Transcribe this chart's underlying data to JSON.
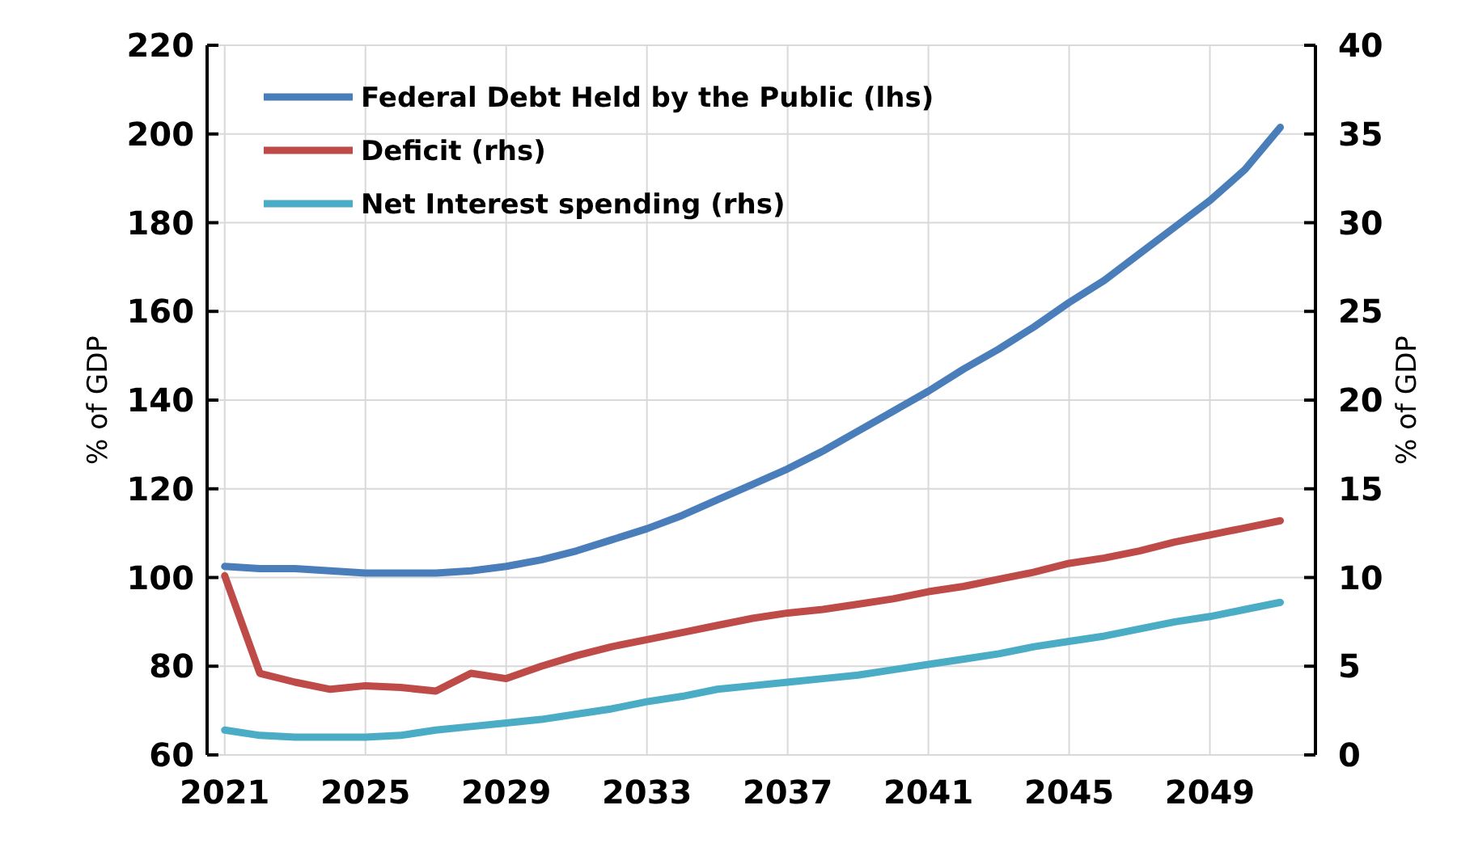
{
  "chart_data": {
    "type": "line",
    "ylabel": "% of GDP",
    "y2label": "% of GDP",
    "x": [
      2021,
      2022,
      2023,
      2024,
      2025,
      2026,
      2027,
      2028,
      2029,
      2030,
      2031,
      2032,
      2033,
      2034,
      2035,
      2036,
      2037,
      2038,
      2039,
      2040,
      2041,
      2042,
      2043,
      2044,
      2045,
      2046,
      2047,
      2048,
      2049,
      2050,
      2051
    ],
    "xlim": [
      2020.5,
      2052
    ],
    "xticks": [
      2021,
      2025,
      2029,
      2033,
      2037,
      2041,
      2045,
      2049
    ],
    "ylim": [
      60,
      220
    ],
    "yticks": [
      60,
      80,
      100,
      120,
      140,
      160,
      180,
      200,
      220
    ],
    "y2lim": [
      0,
      40
    ],
    "y2ticks": [
      0,
      5,
      10,
      15,
      20,
      25,
      30,
      35,
      40
    ],
    "grid": true,
    "legend": "top left",
    "line_style": "solid",
    "marker": "none",
    "series": [
      {
        "name": "Federal Debt Held by the Public (lhs)",
        "color": "#4a7ebb",
        "values": [
          102.5,
          102,
          102,
          101.5,
          101,
          101,
          101,
          101.5,
          102.5,
          104,
          106,
          108.5,
          111,
          114,
          117.5,
          121,
          124.5,
          128.5,
          133,
          137.5,
          142,
          147,
          151.5,
          156.5,
          162,
          167,
          173,
          179,
          185,
          192,
          201.5
        ]
      },
      {
        "name": "Deficit (rhs)",
        "color": "#be4b48",
        "axis": "y2",
        "values": [
          10.1,
          4.6,
          4.1,
          3.7,
          3.9,
          3.8,
          3.6,
          4.6,
          4.3,
          5.0,
          5.6,
          6.1,
          6.5,
          6.9,
          7.3,
          7.7,
          8.0,
          8.2,
          8.5,
          8.8,
          9.2,
          9.5,
          9.9,
          10.3,
          10.8,
          11.1,
          11.5,
          12.0,
          12.4,
          12.8,
          13.2
        ]
      },
      {
        "name": "Net Interest spending (rhs)",
        "color": "#4bacc6",
        "axis": "y2",
        "values": [
          1.4,
          1.1,
          1.0,
          1.0,
          1.0,
          1.1,
          1.4,
          1.6,
          1.8,
          2.0,
          2.3,
          2.6,
          3.0,
          3.3,
          3.7,
          3.9,
          4.1,
          4.3,
          4.5,
          4.8,
          5.1,
          5.4,
          5.7,
          6.1,
          6.4,
          6.7,
          7.1,
          7.5,
          7.8,
          8.2,
          8.6
        ]
      }
    ]
  }
}
